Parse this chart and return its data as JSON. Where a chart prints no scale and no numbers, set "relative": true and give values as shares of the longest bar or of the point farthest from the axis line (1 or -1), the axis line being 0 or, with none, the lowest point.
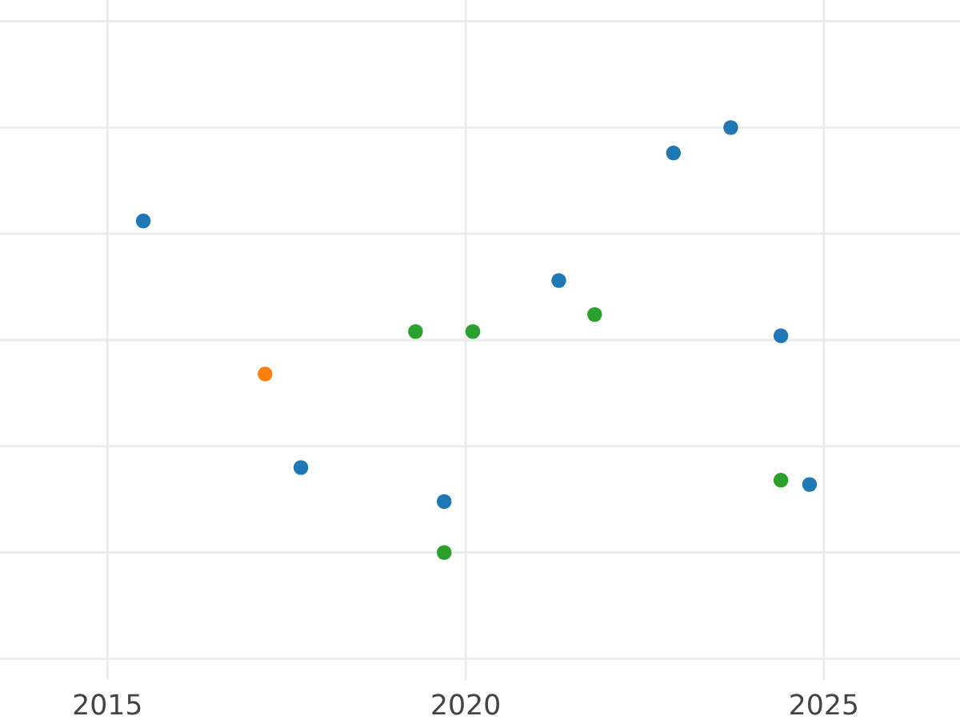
{
  "chart_data": {
    "type": "scatter",
    "relative": true,
    "marker": "circle",
    "grid": true,
    "tick_labels": "x",
    "xlim": [
      2013.5,
      2026.9
    ],
    "xticks": [
      2015,
      2020,
      2025
    ],
    "series": [
      {
        "color": "#1f77b4",
        "x": [
          2015.5,
          2017.7,
          2019.7,
          2021.3,
          2022.9,
          2023.7,
          2024.4,
          2024.8
        ],
        "values": [
          0.78,
          0.2,
          0.12,
          0.64,
          0.94,
          1.0,
          0.51,
          0.16
        ]
      },
      {
        "color": "#ff7f0e",
        "x": [
          2017.2
        ],
        "values": [
          0.42
        ]
      },
      {
        "color": "#2ca02c",
        "x": [
          2019.3,
          2020.1,
          2021.8,
          2019.7,
          2024.4
        ],
        "values": [
          0.52,
          0.52,
          0.56,
          0.0,
          0.17
        ]
      }
    ]
  }
}
